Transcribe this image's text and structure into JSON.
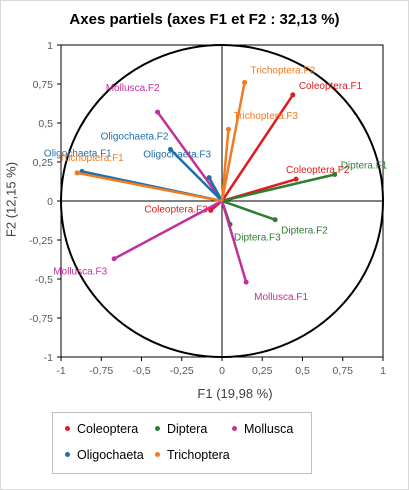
{
  "chart_data": {
    "type": "scatter",
    "title": "Axes partiels (axes F1 et F2 : 32,13 %)",
    "xlabel": "F1 (19,98 %)",
    "ylabel": "F2 (12,15 %)",
    "xlim": [
      -1,
      1
    ],
    "ylim": [
      -1,
      1
    ],
    "xticks": [
      "-1",
      "-0,75",
      "-0,5",
      "-0,25",
      "0",
      "0,25",
      "0,5",
      "0,75",
      "1"
    ],
    "yticks": [
      "1",
      "0,75",
      "0,5",
      "0,25",
      "0",
      "-0,25",
      "-0,5",
      "-0,75",
      "-1"
    ],
    "legend_position": "bottom",
    "series": [
      {
        "name": "Coleoptera",
        "color": "#e31a1c",
        "points": [
          {
            "label": "Coleoptera.F1",
            "x": 0.44,
            "y": 0.68
          },
          {
            "label": "Coleoptera.F2",
            "x": 0.46,
            "y": 0.14
          },
          {
            "label": "Coleoptera.F3",
            "x": -0.07,
            "y": -0.06
          }
        ]
      },
      {
        "name": "Diptera",
        "color": "#2e7d32",
        "points": [
          {
            "label": "Diptera.F1",
            "x": 0.7,
            "y": 0.17
          },
          {
            "label": "Diptera.F2",
            "x": 0.33,
            "y": -0.12
          },
          {
            "label": "Diptera.F3",
            "x": 0.05,
            "y": -0.15
          }
        ]
      },
      {
        "name": "Mollusca",
        "color": "#c2309c",
        "points": [
          {
            "label": "Mollusca.F1",
            "x": 0.15,
            "y": -0.52
          },
          {
            "label": "Mollusca.F2",
            "x": -0.4,
            "y": 0.57
          },
          {
            "label": "Mollusca.F3",
            "x": -0.67,
            "y": -0.37
          }
        ]
      },
      {
        "name": "Oligochaeta",
        "color": "#1f6fa8",
        "points": [
          {
            "label": "Oligochaeta.F1",
            "x": -0.87,
            "y": 0.19
          },
          {
            "label": "Oligochaeta.F2",
            "x": -0.32,
            "y": 0.33
          },
          {
            "label": "Oligochaeta.F3",
            "x": -0.08,
            "y": 0.15
          }
        ]
      },
      {
        "name": "Trichoptera",
        "color": "#f07b23",
        "points": [
          {
            "label": "Trichoptera.F1",
            "x": -0.9,
            "y": 0.18
          },
          {
            "label": "Trichoptera.F2",
            "x": 0.14,
            "y": 0.76
          },
          {
            "label": "Trichoptera.F3",
            "x": 0.04,
            "y": 0.46
          }
        ]
      }
    ]
  }
}
